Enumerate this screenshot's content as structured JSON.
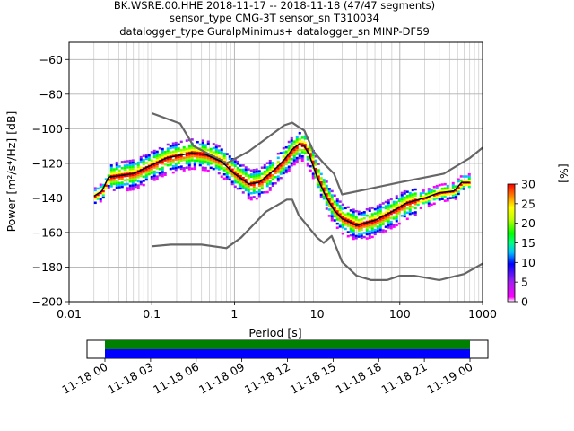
{
  "chart_data": [
    {
      "type": "heatmap",
      "title_lines": [
        "BK.WSRE.00.HHE   2018-11-17 -- 2018-11-18  (47/47 segments)",
        "sensor_type CMG-3T sensor_sn T310034",
        "datalogger_type GuralpMinimus+ datalogger_sn MINP-DF59"
      ],
      "xlabel": "Period [s]",
      "ylabel": "Power [m²/s⁴/Hz] [dB]",
      "x_scale": "log",
      "xlim": [
        0.01,
        1000
      ],
      "ylim": [
        -200,
        -50
      ],
      "x_ticks": [
        0.01,
        0.1,
        1,
        10,
        100,
        1000
      ],
      "x_tick_labels": [
        "0.01",
        "0.1",
        "1",
        "10",
        "100",
        "1000"
      ],
      "y_ticks": [
        -200,
        -180,
        -160,
        -140,
        -120,
        -100,
        -80,
        -60
      ],
      "y_tick_labels": [
        "−200",
        "−180",
        "−160",
        "−140",
        "−120",
        "−100",
        "−80",
        "−60"
      ],
      "grid": true,
      "colorbar": {
        "label": "[%]",
        "range": [
          0,
          30
        ],
        "ticks": [
          0,
          5,
          10,
          15,
          20,
          25,
          30
        ],
        "tick_labels": [
          "0",
          "5",
          "10",
          "15",
          "20",
          "25",
          "30"
        ]
      },
      "series": [
        {
          "kind": "noise-model-high",
          "color": "#666666",
          "x": [
            0.1,
            0.22,
            0.32,
            0.8,
            1.5,
            4,
            5,
            6,
            7,
            9,
            12,
            16,
            20,
            40,
            100,
            340,
            700,
            1000
          ],
          "y": [
            -91,
            -97,
            -110,
            -120,
            -113,
            -98,
            -96.5,
            -99,
            -101,
            -113,
            -120,
            -126,
            -138,
            -135,
            -131,
            -126,
            -117,
            -111
          ]
        },
        {
          "kind": "noise-model-low",
          "color": "#666666",
          "x": [
            0.1,
            0.17,
            0.4,
            0.8,
            1.2,
            2.4,
            4.3,
            5,
            6,
            10,
            12,
            15,
            20,
            30,
            45,
            70,
            100,
            150,
            300,
            600,
            1000
          ],
          "y": [
            -168,
            -167,
            -167,
            -169,
            -163,
            -148,
            -141,
            -141,
            -150,
            -163,
            -166,
            -162,
            -177,
            -185,
            -187.5,
            -187.5,
            -185,
            -185,
            -187.5,
            -184,
            -178
          ]
        },
        {
          "kind": "mode",
          "color": "#000000",
          "x": [
            0.02,
            0.025,
            0.03,
            0.06,
            0.1,
            0.15,
            0.3,
            0.45,
            0.7,
            1.0,
            1.5,
            2.0,
            3.0,
            4.0,
            5.0,
            6.0,
            7.0,
            8.0,
            10,
            13,
            16,
            20,
            25,
            30,
            35,
            50,
            80,
            120,
            200,
            300,
            450,
            560,
            700
          ],
          "y": [
            -139,
            -136,
            -128,
            -126,
            -121,
            -117,
            -114,
            -115,
            -119,
            -126,
            -132,
            -131,
            -124,
            -118,
            -112,
            -109,
            -110,
            -115,
            -128,
            -140,
            -147,
            -152,
            -154,
            -156,
            -155,
            -153,
            -148,
            -143,
            -140,
            -137,
            -136,
            -131,
            -131
          ]
        }
      ]
    },
    {
      "type": "timeline",
      "x_tick_labels": [
        "11-18 00",
        "11-18 03",
        "11-18 06",
        "11-18 09",
        "11-18 12",
        "11-18 15",
        "11-18 18",
        "11-18 21",
        "11-19 00"
      ],
      "tracks": [
        {
          "color": "#008000",
          "start": "11-18 00",
          "end": "11-19 00"
        },
        {
          "color": "#0000ff",
          "start": "11-18 00",
          "end": "11-19 00"
        }
      ]
    }
  ]
}
